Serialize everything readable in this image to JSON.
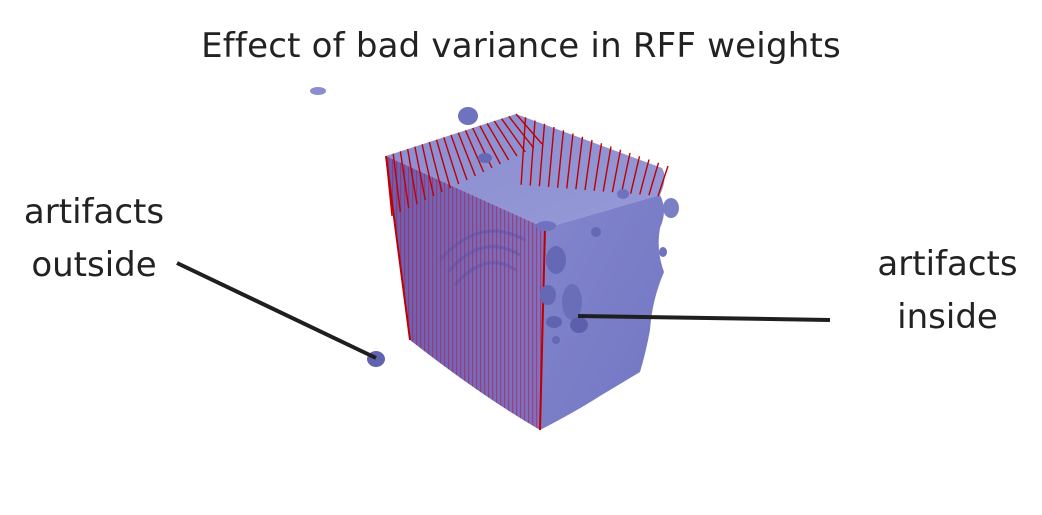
{
  "figure": {
    "title": "Effect of bad variance in RFF weights"
  },
  "annotations": {
    "outside": {
      "line1": "artifacts",
      "line2": "outside"
    },
    "inside": {
      "line1": "artifacts",
      "line2": "inside"
    }
  },
  "colors": {
    "surface": "#7b7fc6",
    "surface_dark": "#6568b3",
    "spike": "#c00000",
    "leader_line": "#1f1f1f",
    "text": "#222222"
  }
}
